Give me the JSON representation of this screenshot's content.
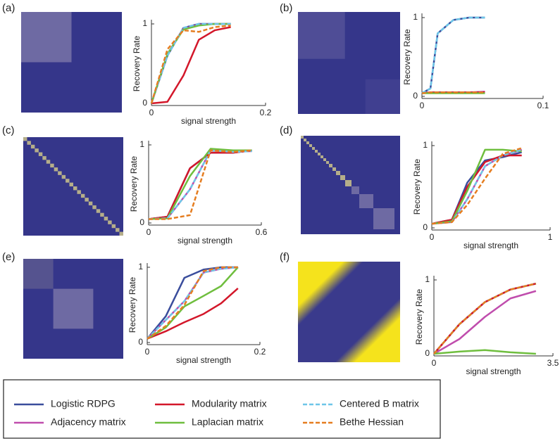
{
  "chart_data": [
    {
      "type": "line",
      "label": "(a)",
      "ylabel": "Recovery Rate",
      "xlabel": "signal strength",
      "x": [
        0,
        0.028,
        0.056,
        0.083,
        0.111,
        0.139
      ],
      "xlim": [
        0,
        0.2
      ],
      "xticks": [
        0,
        0.2
      ],
      "ylim": [
        0,
        1
      ],
      "yticks": [
        0,
        1
      ],
      "series": [
        {
          "name": "Logistic RDPG",
          "color": "#3a4d9c",
          "values": [
            0,
            0.6,
            0.95,
            1,
            1,
            1
          ]
        },
        {
          "name": "Adjacency matrix",
          "color": "#c04dad",
          "values": [
            0,
            0.62,
            0.94,
            0.99,
            1,
            1
          ]
        },
        {
          "name": "Modularity matrix",
          "color": "#d3172a",
          "values": [
            0,
            0.02,
            0.35,
            0.8,
            0.92,
            0.96
          ]
        },
        {
          "name": "Laplacian matrix",
          "color": "#6fbe3e",
          "values": [
            0,
            0.62,
            0.93,
            0.98,
            1,
            1
          ]
        },
        {
          "name": "Centered B matrix",
          "color": "#6ec6e8",
          "dash": true,
          "values": [
            0,
            0.6,
            0.95,
            1,
            1,
            1
          ]
        },
        {
          "name": "Bethe Hessian",
          "color": "#e57d20",
          "dash": true,
          "values": [
            0,
            0.68,
            0.92,
            0.9,
            0.96,
            0.98
          ]
        }
      ]
    },
    {
      "type": "line",
      "label": "(b)",
      "ylabel": "Recovery Rate",
      "xlabel": "",
      "x": [
        0,
        0.007,
        0.013,
        0.026,
        0.039,
        0.052
      ],
      "xlim": [
        0,
        0.1
      ],
      "xticks": [
        0,
        0.1
      ],
      "ylim": [
        0,
        1
      ],
      "yticks": [
        0,
        1
      ],
      "series": [
        {
          "name": "Logistic RDPG",
          "color": "#3a4d9c",
          "values": [
            0.04,
            0.1,
            0.8,
            0.97,
            1,
            1
          ]
        },
        {
          "name": "Adjacency matrix",
          "color": "#c04dad",
          "values": [
            0.04,
            0.05,
            0.05,
            0.05,
            0.05,
            0.06
          ]
        },
        {
          "name": "Modularity matrix",
          "color": "#d3172a",
          "values": [
            0.04,
            0.05,
            0.05,
            0.05,
            0.05,
            0.05
          ]
        },
        {
          "name": "Laplacian matrix",
          "color": "#6fbe3e",
          "values": [
            0.04,
            0.04,
            0.04,
            0.04,
            0.04,
            0.04
          ]
        },
        {
          "name": "Centered B matrix",
          "color": "#6ec6e8",
          "dash": true,
          "values": [
            0.04,
            0.1,
            0.8,
            0.97,
            1,
            1
          ]
        },
        {
          "name": "Bethe Hessian",
          "color": "#e57d20",
          "dash": true,
          "values": [
            0.04,
            0.05,
            0.05,
            0.05,
            0.05,
            0.05
          ]
        }
      ]
    },
    {
      "type": "line",
      "label": "(c)",
      "ylabel": "Recovery Rate",
      "xlabel": "signal strength",
      "x": [
        0,
        0.1,
        0.22,
        0.33,
        0.45,
        0.55
      ],
      "xlim": [
        0,
        0.6
      ],
      "xticks": [
        0,
        0.6
      ],
      "ylim": [
        0,
        1
      ],
      "yticks": [
        0,
        1
      ],
      "series": [
        {
          "name": "Logistic RDPG",
          "color": "#3a4d9c",
          "values": [
            0.05,
            0.08,
            0.7,
            0.9,
            0.9,
            0.93
          ]
        },
        {
          "name": "Adjacency matrix",
          "color": "#c04dad",
          "values": [
            0.05,
            0.06,
            0.43,
            0.93,
            0.91,
            0.92
          ]
        },
        {
          "name": "Modularity matrix",
          "color": "#d3172a",
          "values": [
            0.05,
            0.08,
            0.7,
            0.9,
            0.9,
            0.93
          ]
        },
        {
          "name": "Laplacian matrix",
          "color": "#6fbe3e",
          "values": [
            0.05,
            0.06,
            0.6,
            0.95,
            0.93,
            0.93
          ]
        },
        {
          "name": "Centered B matrix",
          "color": "#6ec6e8",
          "dash": true,
          "values": [
            0.05,
            0.06,
            0.43,
            0.93,
            0.91,
            0.92
          ]
        },
        {
          "name": "Bethe Hessian",
          "color": "#e57d20",
          "dash": true,
          "values": [
            0.05,
            0.05,
            0.1,
            0.93,
            0.91,
            0.93
          ]
        }
      ]
    },
    {
      "type": "line",
      "label": "(d)",
      "ylabel": "Recovery Rate",
      "xlabel": "signal strength",
      "x": [
        0,
        0.17,
        0.3,
        0.45,
        0.6,
        0.76
      ],
      "xlim": [
        0,
        1
      ],
      "xticks": [
        0,
        1
      ],
      "ylim": [
        0,
        1
      ],
      "yticks": [
        0,
        1
      ],
      "series": [
        {
          "name": "Logistic RDPG",
          "color": "#3a4d9c",
          "values": [
            0.05,
            0.1,
            0.55,
            0.82,
            0.86,
            0.92
          ]
        },
        {
          "name": "Adjacency matrix",
          "color": "#c04dad",
          "values": [
            0.05,
            0.07,
            0.35,
            0.75,
            0.88,
            0.95
          ]
        },
        {
          "name": "Modularity matrix",
          "color": "#d3172a",
          "values": [
            0.05,
            0.1,
            0.5,
            0.8,
            0.88,
            0.88
          ]
        },
        {
          "name": "Laplacian matrix",
          "color": "#6fbe3e",
          "values": [
            0.05,
            0.08,
            0.45,
            0.95,
            0.95,
            0.93
          ]
        },
        {
          "name": "Centered B matrix",
          "color": "#6ec6e8",
          "dash": true,
          "values": [
            0.05,
            0.07,
            0.35,
            0.75,
            0.88,
            0.95
          ]
        },
        {
          "name": "Bethe Hessian",
          "color": "#e57d20",
          "dash": true,
          "values": [
            0.05,
            0.07,
            0.28,
            0.6,
            0.9,
            0.97
          ]
        }
      ]
    },
    {
      "type": "line",
      "label": "(e)",
      "ylabel": "Recovery Rate",
      "xlabel": "signal strength",
      "x": [
        0,
        0.033,
        0.066,
        0.1,
        0.131,
        0.161
      ],
      "xlim": [
        0,
        0.2
      ],
      "xticks": [
        0,
        0.2
      ],
      "ylim": [
        0,
        1
      ],
      "yticks": [
        0,
        1
      ],
      "series": [
        {
          "name": "Logistic RDPG",
          "color": "#3a4d9c",
          "values": [
            0.05,
            0.35,
            0.86,
            0.97,
            1,
            1
          ]
        },
        {
          "name": "Adjacency matrix",
          "color": "#c04dad",
          "values": [
            0.05,
            0.3,
            0.55,
            0.93,
            0.98,
            1
          ]
        },
        {
          "name": "Modularity matrix",
          "color": "#d3172a",
          "values": [
            0.05,
            0.15,
            0.27,
            0.38,
            0.52,
            0.72
          ]
        },
        {
          "name": "Laplacian matrix",
          "color": "#6fbe3e",
          "values": [
            0.05,
            0.2,
            0.48,
            0.62,
            0.75,
            1
          ]
        },
        {
          "name": "Centered B matrix",
          "color": "#6ec6e8",
          "dash": true,
          "values": [
            0.05,
            0.3,
            0.55,
            0.93,
            0.98,
            1
          ]
        },
        {
          "name": "Bethe Hessian",
          "color": "#e57d20",
          "dash": true,
          "values": [
            0.05,
            0.22,
            0.5,
            0.95,
            1,
            1
          ]
        }
      ]
    },
    {
      "type": "line",
      "label": "(f)",
      "ylabel": "Recovery Rate",
      "xlabel": "signal strength",
      "x": [
        0,
        0.75,
        1.5,
        2.25,
        3
      ],
      "xlim": [
        0,
        3.5
      ],
      "xticks": [
        0,
        3.5
      ],
      "ylim": [
        0,
        1
      ],
      "yticks": [
        0,
        1
      ],
      "series": [
        {
          "name": "Logistic RDPG",
          "color": "#3a4d9c",
          "values": [
            0,
            0.4,
            0.7,
            0.87,
            0.95
          ]
        },
        {
          "name": "Adjacency matrix",
          "color": "#c04dad",
          "values": [
            0,
            0.2,
            0.5,
            0.75,
            0.85
          ]
        },
        {
          "name": "Modularity matrix",
          "color": "#d3172a",
          "values": [
            0,
            0.4,
            0.7,
            0.87,
            0.95
          ]
        },
        {
          "name": "Laplacian matrix",
          "color": "#6fbe3e",
          "values": [
            0,
            0.03,
            0.05,
            0.02,
            0
          ]
        },
        {
          "name": "Centered B matrix",
          "color": "#6ec6e8",
          "dash": true,
          "values": [
            0,
            0.4,
            0.7,
            0.87,
            0.95
          ]
        },
        {
          "name": "Bethe Hessian",
          "color": "#e57d20",
          "dash": true,
          "values": [
            0,
            0.4,
            0.7,
            0.87,
            0.95
          ]
        }
      ]
    }
  ]
}
